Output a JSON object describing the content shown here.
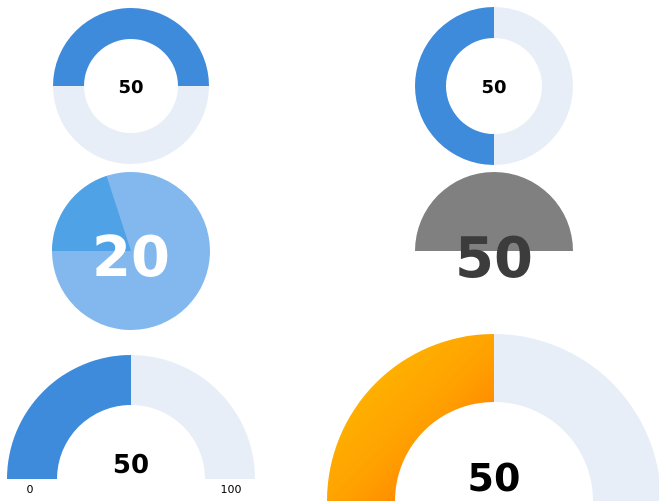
{
  "colors": {
    "track": "#E8EEF8",
    "blue": "#3E8ADB",
    "light_blue": "#82B8EE",
    "mid_blue": "#4FA2E6",
    "grey": "#808080",
    "dark_text": "#3C3C3C",
    "white": "#FFFFFF",
    "gradient_start": "#FFC200",
    "gradient_end": "#FF6A00"
  },
  "gauges": [
    {
      "id": "g1",
      "type": "donut-top-half",
      "value": 50,
      "label": "50"
    },
    {
      "id": "g2",
      "type": "donut-left-half",
      "value": 50,
      "label": "50"
    },
    {
      "id": "g3",
      "type": "pie",
      "value": 20,
      "label": "20"
    },
    {
      "id": "g4",
      "type": "semicircle-pie",
      "value": 50,
      "label": "50"
    },
    {
      "id": "g5",
      "type": "semicircle-arc",
      "value": 50,
      "label": "50",
      "min_label": "0",
      "max_label": "100"
    },
    {
      "id": "g6",
      "type": "semicircle-arc-gradient",
      "value": 50,
      "label": "50"
    }
  ]
}
